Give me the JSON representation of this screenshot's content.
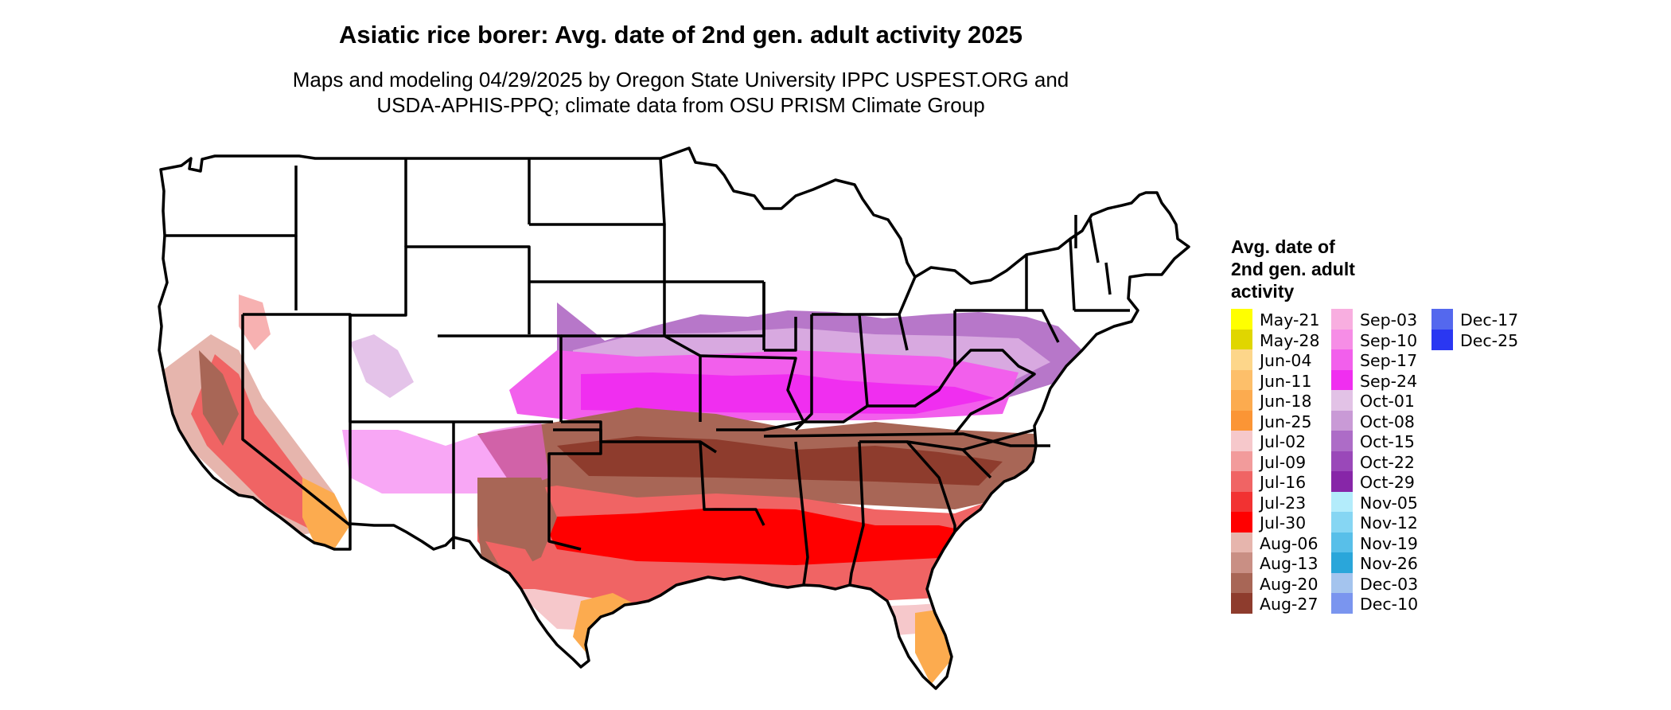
{
  "title": "Asiatic rice borer: Avg. date of 2nd gen. adult activity 2025",
  "subtitle": [
    "Maps and modeling 04/29/2025 by Oregon State University IPPC USPEST.ORG and",
    "USDA-APHIS-PPQ; climate data from OSU PRISM Climate Group"
  ],
  "legend": {
    "title": [
      "Avg. date of",
      "2nd gen. adult",
      "activity"
    ],
    "columns": [
      [
        {
          "label": "May-21",
          "color": "#ffff00"
        },
        {
          "label": "May-28",
          "color": "#e0d600"
        },
        {
          "label": "Jun-04",
          "color": "#fdd68a"
        },
        {
          "label": "Jun-11",
          "color": "#fdbf6a"
        },
        {
          "label": "Jun-18",
          "color": "#fcab4f"
        },
        {
          "label": "Jun-25",
          "color": "#fb9535"
        },
        {
          "label": "Jul-02",
          "color": "#f6c8cb"
        },
        {
          "label": "Jul-09",
          "color": "#f29b9b"
        },
        {
          "label": "Jul-16",
          "color": "#f06464"
        },
        {
          "label": "Jul-23",
          "color": "#f23232"
        },
        {
          "label": "Jul-30",
          "color": "#ff0000"
        },
        {
          "label": "Aug-06",
          "color": "#e6b5ad"
        },
        {
          "label": "Aug-13",
          "color": "#c98f84"
        },
        {
          "label": "Aug-20",
          "color": "#a86656"
        },
        {
          "label": "Aug-27",
          "color": "#8e3c2d"
        }
      ],
      [
        {
          "label": "Sep-03",
          "color": "#f8aee0"
        },
        {
          "label": "Sep-10",
          "color": "#f68de6"
        },
        {
          "label": "Sep-17",
          "color": "#f25fec"
        },
        {
          "label": "Sep-24",
          "color": "#f02ef0"
        },
        {
          "label": "Oct-01",
          "color": "#e2c2e6"
        },
        {
          "label": "Oct-08",
          "color": "#c99ad6"
        },
        {
          "label": "Oct-15",
          "color": "#ad6cc7"
        },
        {
          "label": "Oct-22",
          "color": "#9a48b9"
        },
        {
          "label": "Oct-29",
          "color": "#8726a8"
        },
        {
          "label": "Nov-05",
          "color": "#b3ecfb"
        },
        {
          "label": "Nov-12",
          "color": "#86d6f3"
        },
        {
          "label": "Nov-19",
          "color": "#58bfe9"
        },
        {
          "label": "Nov-26",
          "color": "#2aa6da"
        },
        {
          "label": "Dec-03",
          "color": "#a4c4ee"
        },
        {
          "label": "Dec-10",
          "color": "#7a95ef"
        }
      ],
      [
        {
          "label": "Dec-17",
          "color": "#5468ee"
        },
        {
          "label": "Dec-25",
          "color": "#2a37f2"
        }
      ]
    ]
  },
  "map_colors": {
    "north": "#ffffff",
    "outline": "#000000"
  }
}
